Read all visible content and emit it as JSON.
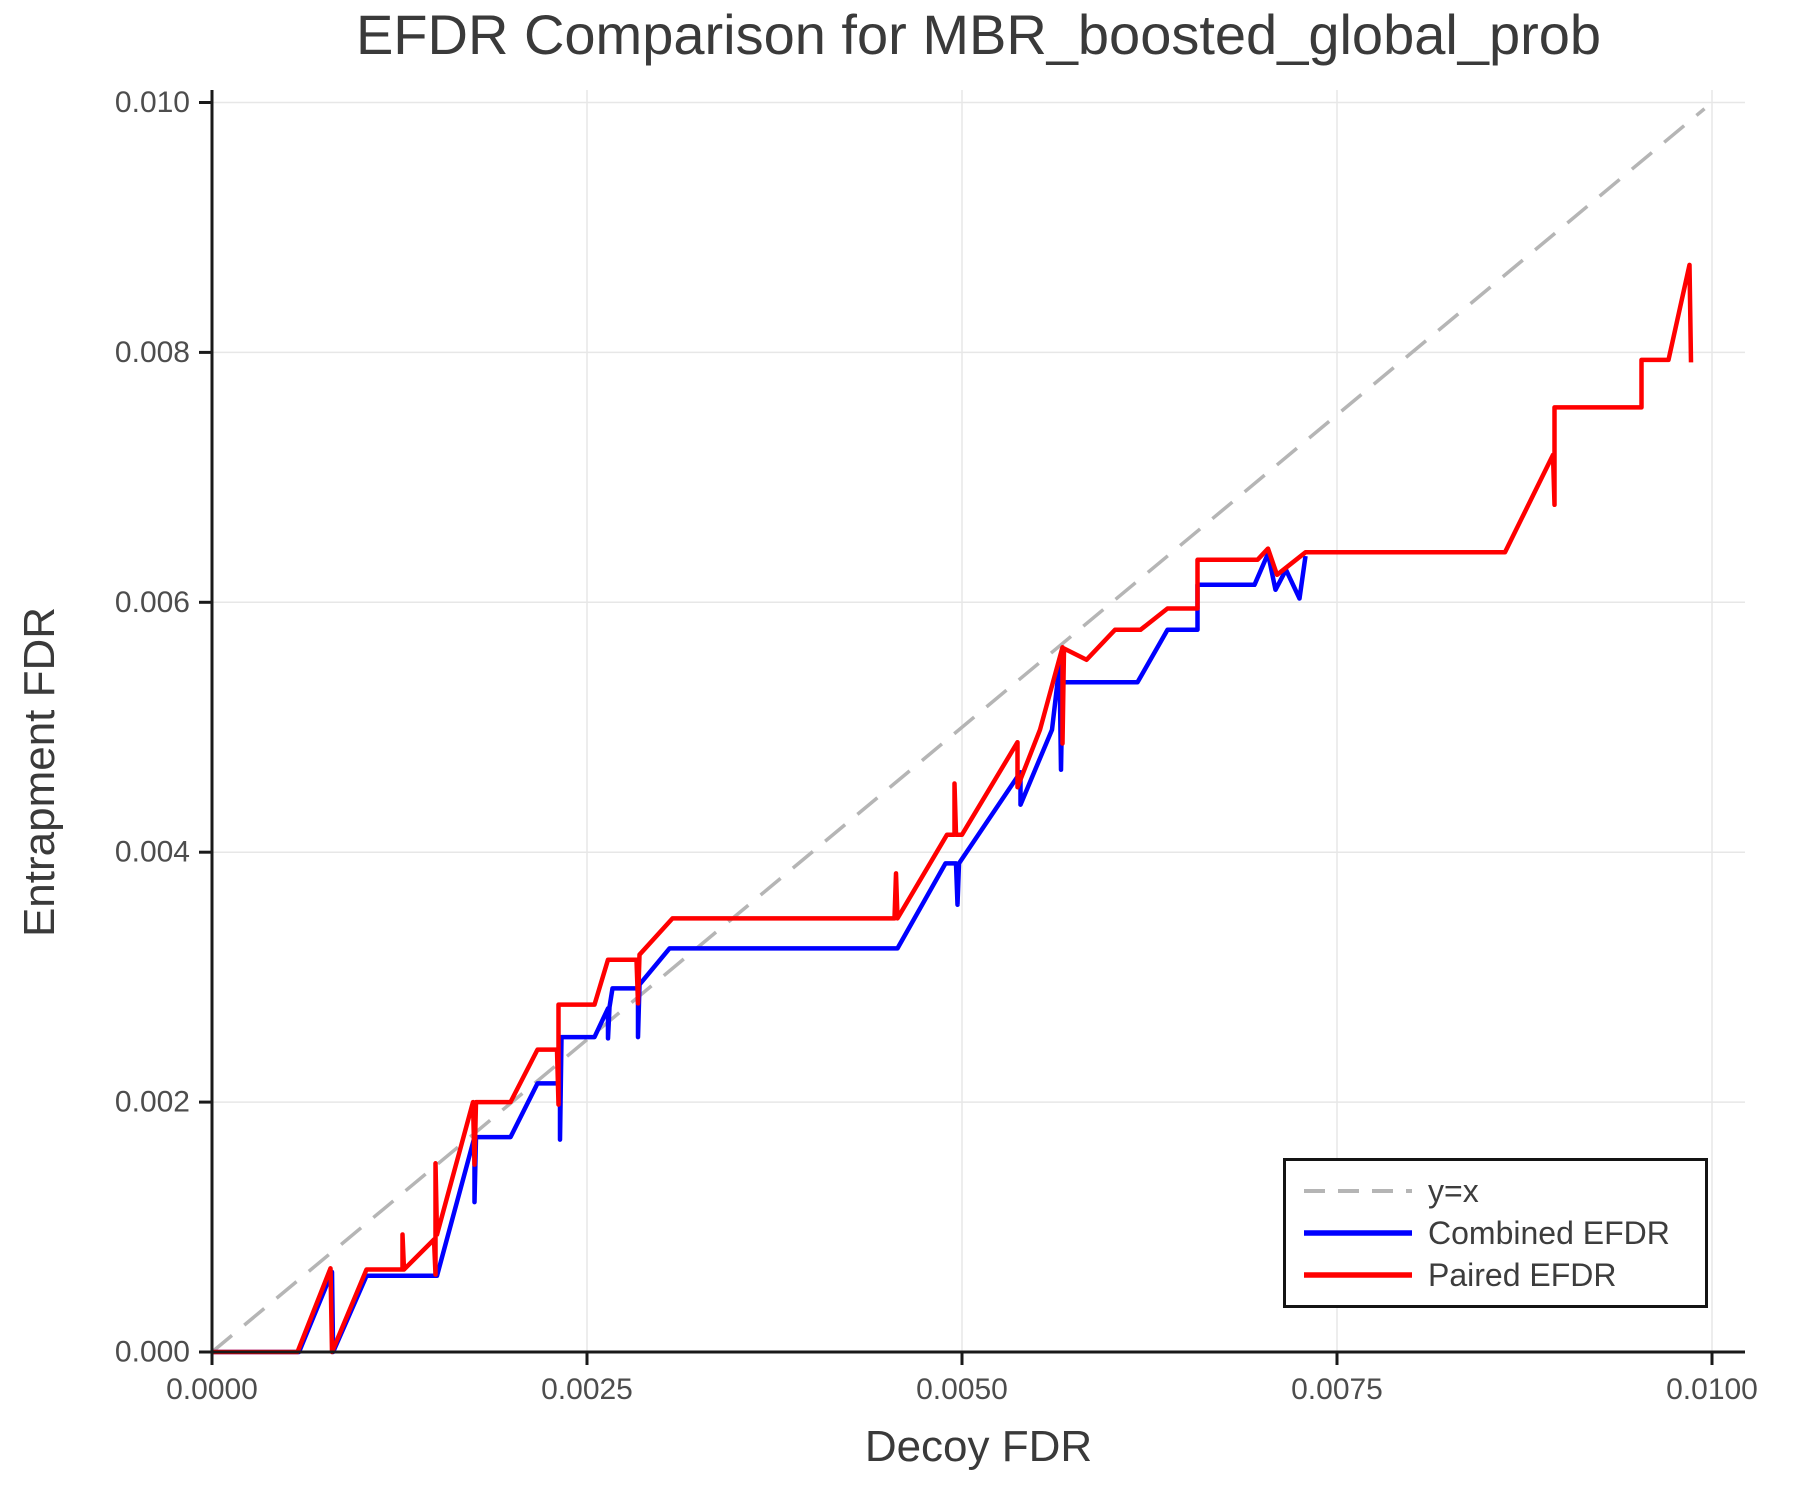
{
  "title": "EFDR Comparison for MBR_boosted_global_prob",
  "axes": {
    "xlabel": "Decoy FDR",
    "ylabel": "Entrapment FDR"
  },
  "legend": {
    "position": "lower right",
    "entries": [
      {
        "label": "y=x",
        "color": "#b5b5b5",
        "style": "dashed"
      },
      {
        "label": "Combined EFDR",
        "color": "#0000ff",
        "style": "solid"
      },
      {
        "label": "Paired EFDR",
        "color": "#ff0000",
        "style": "solid"
      }
    ]
  },
  "colors": {
    "grid": "#e7e7e7",
    "spine": "#1a1a1a",
    "tick_label": "#4d4d4d",
    "text": "#3a3a3a",
    "reference": "#b5b5b5",
    "combined": "#0000ff",
    "paired": "#ff0000"
  },
  "chart_data": {
    "type": "line",
    "title": "EFDR Comparison for MBR_boosted_global_prob",
    "xlabel": "Decoy FDR",
    "ylabel": "Entrapment FDR",
    "xlim": [
      0,
      0.01022
    ],
    "ylim": [
      0,
      0.0101
    ],
    "grid": true,
    "legend_position": "lower right",
    "xticks": {
      "values": [
        0,
        0.0025,
        0.005,
        0.0075,
        0.01
      ],
      "labels": [
        "0.0000",
        "0.0025",
        "0.0050",
        "0.0075",
        "0.0100"
      ]
    },
    "yticks": {
      "values": [
        0,
        0.002,
        0.004,
        0.006,
        0.008,
        0.01
      ],
      "labels": [
        "0.000",
        "0.002",
        "0.004",
        "0.006",
        "0.008",
        "0.010"
      ]
    },
    "reference": {
      "name": "y=x",
      "type": "identity",
      "color": "#b5b5b5",
      "dashed": true,
      "from": [
        0,
        0
      ],
      "to": [
        0.00995,
        0.00995
      ]
    },
    "series": [
      {
        "id": "combined-efdr",
        "name": "Combined EFDR",
        "color": "#0000ff",
        "points": [
          [
            0.0,
            0.0
          ],
          [
            0.00058,
            0.0
          ],
          [
            0.0008,
            0.00064
          ],
          [
            0.000807,
            0.0
          ],
          [
            0.00103,
            0.00061
          ],
          [
            0.0015,
            0.00061
          ],
          [
            0.00175,
            0.00172
          ],
          [
            0.00175,
            0.0012
          ],
          [
            0.00176,
            0.00172
          ],
          [
            0.00199,
            0.00172
          ],
          [
            0.00217,
            0.00215
          ],
          [
            0.00232,
            0.00215
          ],
          [
            0.00232,
            0.0017
          ],
          [
            0.00233,
            0.00252
          ],
          [
            0.00255,
            0.00252
          ],
          [
            0.00264,
            0.00275
          ],
          [
            0.00264,
            0.00251
          ],
          [
            0.00265,
            0.00276
          ],
          [
            0.00267,
            0.00291
          ],
          [
            0.00284,
            0.00291
          ],
          [
            0.00284,
            0.00252
          ],
          [
            0.00285,
            0.00294
          ],
          [
            0.00305,
            0.00323
          ],
          [
            0.00457,
            0.00323
          ],
          [
            0.00489,
            0.00391
          ],
          [
            0.00496,
            0.00391
          ],
          [
            0.00497,
            0.00358
          ],
          [
            0.00498,
            0.00391
          ],
          [
            0.00539,
            0.00464
          ],
          [
            0.00539,
            0.00438
          ],
          [
            0.0056,
            0.00498
          ],
          [
            0.00565,
            0.0055
          ],
          [
            0.00566,
            0.00466
          ],
          [
            0.00567,
            0.00536
          ],
          [
            0.00617,
            0.00536
          ],
          [
            0.00637,
            0.00578
          ],
          [
            0.00657,
            0.00578
          ],
          [
            0.00657,
            0.00614
          ],
          [
            0.00695,
            0.00614
          ],
          [
            0.00704,
            0.00639
          ],
          [
            0.00709,
            0.0061
          ],
          [
            0.00716,
            0.00626
          ],
          [
            0.00725,
            0.00603
          ],
          [
            0.00729,
            0.00637
          ]
        ]
      },
      {
        "id": "paired-efdr",
        "name": "Paired EFDR",
        "color": "#ff0000",
        "points": [
          [
            0.0,
            0.0
          ],
          [
            0.00057,
            0.0
          ],
          [
            0.00079,
            0.00067
          ],
          [
            0.0008,
            0.0
          ],
          [
            0.00103,
            0.00066
          ],
          [
            0.00127,
            0.00066
          ],
          [
            0.00127,
            0.00094
          ],
          [
            0.00128,
            0.00066
          ],
          [
            0.00148,
            0.0009
          ],
          [
            0.00149,
            0.00062
          ],
          [
            0.00149,
            0.00151
          ],
          [
            0.0015,
            0.00094
          ],
          [
            0.00174,
            0.002
          ],
          [
            0.00175,
            0.0015
          ],
          [
            0.00176,
            0.002
          ],
          [
            0.00199,
            0.002
          ],
          [
            0.00217,
            0.00242
          ],
          [
            0.0023,
            0.00242
          ],
          [
            0.00231,
            0.00198
          ],
          [
            0.00231,
            0.00278
          ],
          [
            0.00255,
            0.00278
          ],
          [
            0.00264,
            0.00314
          ],
          [
            0.00283,
            0.00314
          ],
          [
            0.00284,
            0.00279
          ],
          [
            0.00285,
            0.00318
          ],
          [
            0.00307,
            0.00347
          ],
          [
            0.00455,
            0.00347
          ],
          [
            0.00456,
            0.00383
          ],
          [
            0.00457,
            0.00347
          ],
          [
            0.0049,
            0.00414
          ],
          [
            0.00495,
            0.00414
          ],
          [
            0.00495,
            0.00455
          ],
          [
            0.00496,
            0.00414
          ],
          [
            0.005,
            0.00414
          ],
          [
            0.00537,
            0.00488
          ],
          [
            0.00537,
            0.00452
          ],
          [
            0.00552,
            0.00498
          ],
          [
            0.00567,
            0.00564
          ],
          [
            0.00567,
            0.00487
          ],
          [
            0.00568,
            0.00563
          ],
          [
            0.00583,
            0.00554
          ],
          [
            0.00602,
            0.00578
          ],
          [
            0.00619,
            0.00578
          ],
          [
            0.00637,
            0.00595
          ],
          [
            0.00657,
            0.00595
          ],
          [
            0.00657,
            0.00634
          ],
          [
            0.00697,
            0.00634
          ],
          [
            0.00704,
            0.00643
          ],
          [
            0.0071,
            0.00622
          ],
          [
            0.00729,
            0.0064
          ],
          [
            0.00862,
            0.0064
          ],
          [
            0.00894,
            0.00718
          ],
          [
            0.00895,
            0.00678
          ],
          [
            0.00895,
            0.00756
          ],
          [
            0.00953,
            0.00756
          ],
          [
            0.00953,
            0.00794
          ],
          [
            0.00971,
            0.00794
          ],
          [
            0.00985,
            0.0087
          ],
          [
            0.00986,
            0.00792
          ]
        ]
      }
    ]
  }
}
